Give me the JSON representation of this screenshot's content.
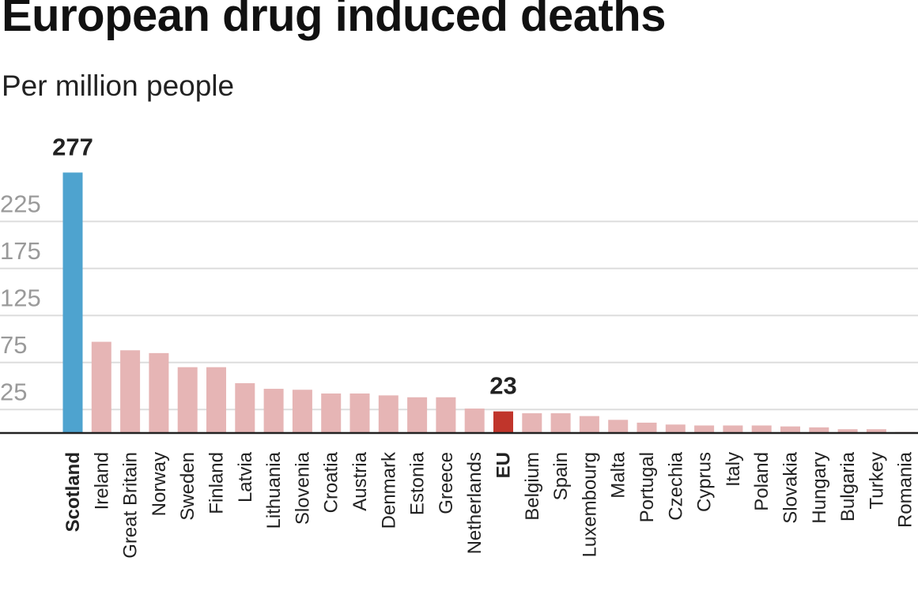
{
  "title": "European drug induced deaths",
  "subtitle": "Per million people",
  "colors": {
    "highlight": "#4ea3cf",
    "eu": "#c0352b",
    "default": "#e6b5b5",
    "grid": "#dddddd",
    "axis": "#222222",
    "tick_text": "#9a9a9a"
  },
  "chart_data": {
    "type": "bar",
    "title": "European drug induced deaths",
    "subtitle": "Per million people",
    "xlabel": "",
    "ylabel": "",
    "ylim": [
      0,
      290
    ],
    "yticks": [
      25,
      75,
      125,
      175,
      225
    ],
    "grid": true,
    "categories": [
      "Scotland",
      "Ireland",
      "Great Britain",
      "Norway",
      "Sweden",
      "Finland",
      "Latvia",
      "Lithuania",
      "Slovenia",
      "Croatia",
      "Austria",
      "Denmark",
      "Estonia",
      "Greece",
      "Netherlands",
      "EU",
      "Belgium",
      "Spain",
      "Luxembourg",
      "Malta",
      "Portugal",
      "Czechia",
      "Cyprus",
      "Italy",
      "Poland",
      "Slovakia",
      "Hungary",
      "Bulgaria",
      "Turkey",
      "Romania"
    ],
    "values": [
      277,
      97,
      88,
      85,
      70,
      70,
      53,
      47,
      46,
      42,
      42,
      40,
      38,
      38,
      26,
      23,
      21,
      21,
      18,
      14,
      11,
      9,
      8,
      8,
      8,
      7,
      6,
      4,
      4,
      1
    ],
    "bold_categories": [
      "Scotland",
      "EU"
    ],
    "highlight": "Scotland",
    "reference": "EU",
    "data_labels": [
      {
        "category": "Scotland",
        "text": "277"
      },
      {
        "category": "EU",
        "text": "23"
      }
    ]
  }
}
